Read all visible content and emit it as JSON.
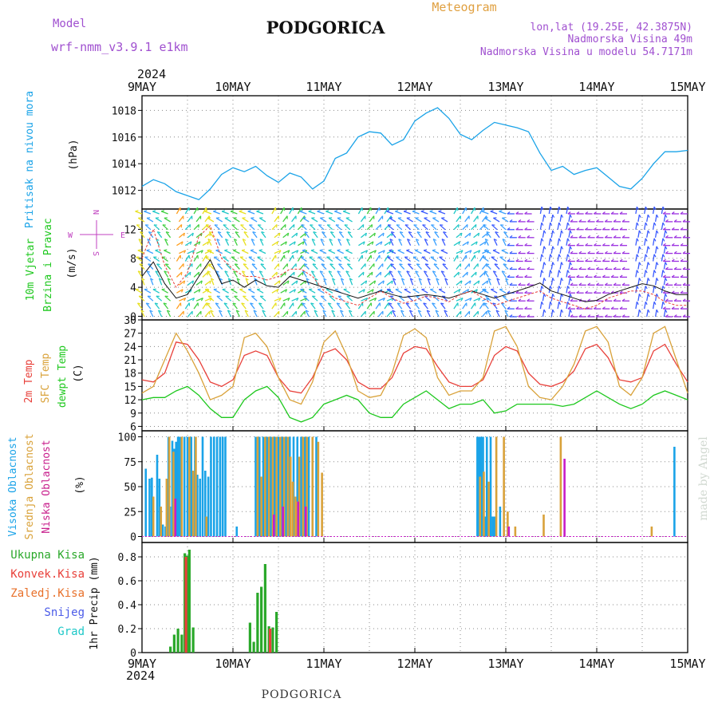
{
  "header": {
    "model_label": "Model",
    "model_name": "wrf-nmm_v3.9.1 e1km",
    "title": "PODGORICA",
    "meteogram_label": "Meteogram",
    "coords": "lon,lat (19.25E, 42.3875N)",
    "elevation": "Nadmorska Visina 49m",
    "model_elevation": "Nadmorska Visina u modelu 54.7171m"
  },
  "footer": {
    "station": "PODGORICA",
    "watermark": "made by Angel"
  },
  "colors": {
    "pressure": "#1aa3e8",
    "temp2m": "#e8403a",
    "sfc": "#d9a23a",
    "dewpt": "#1ec81e",
    "high_cloud": "#1aa3e8",
    "mid_cloud": "#d9a23a",
    "low_cloud": "#c81ec8",
    "total_precip": "#2aa82a",
    "conv_precip": "#e8403a"
  },
  "time_axis": {
    "year_label": "2024",
    "days": [
      "9MAY",
      "10MAY",
      "11MAY",
      "12MAY",
      "13MAY",
      "14MAY",
      "15MAY"
    ]
  },
  "wind_legend": {
    "n": "N",
    "w": "W",
    "e": "E",
    "s": "S"
  },
  "chart_data": [
    {
      "type": "line",
      "ylabel": "Pritisak na nivou mora",
      "unit": "(hPa)",
      "ylim": [
        1010.6,
        1019.1
      ],
      "yticks": [
        1012,
        1014,
        1016,
        1018
      ],
      "x_hours": [
        0,
        3,
        6,
        9,
        12,
        15,
        18,
        21,
        24,
        27,
        30,
        33,
        36,
        39,
        42,
        45,
        48,
        51,
        54,
        57,
        60,
        63,
        66,
        69,
        72,
        75,
        78,
        81,
        84,
        87,
        90,
        93,
        96,
        99,
        102,
        105,
        108,
        111,
        114,
        117,
        120,
        123,
        126,
        129,
        132,
        135,
        138,
        141,
        144
      ],
      "series": [
        {
          "values": [
            1012.3,
            1012.8,
            1012.5,
            1011.9,
            1011.6,
            1011.3,
            1012.1,
            1013.2,
            1013.7,
            1013.4,
            1013.8,
            1013.1,
            1012.6,
            1013.3,
            1013.0,
            1012.1,
            1012.7,
            1014.4,
            1014.8,
            1016.0,
            1016.4,
            1016.3,
            1015.4,
            1015.8,
            1017.2,
            1017.8,
            1018.2,
            1017.4,
            1016.2,
            1015.8,
            1016.5,
            1017.1,
            1016.9,
            1016.7,
            1016.4,
            1014.8,
            1013.5,
            1013.8,
            1013.2,
            1013.5,
            1013.7,
            1013.0,
            1012.3,
            1012.1,
            1012.9,
            1014.0,
            1014.9,
            1014.9,
            1015.0
          ]
        }
      ]
    },
    {
      "type": "line",
      "ylabel": "10m Vjetar Brzina i Pravac",
      "unit": "(m/s)",
      "ylim": [
        -0.5,
        14.8
      ],
      "yticks": [
        0,
        4,
        8,
        12
      ],
      "x_hours": [
        0,
        3,
        6,
        9,
        12,
        15,
        18,
        21,
        24,
        27,
        30,
        33,
        36,
        39,
        42,
        45,
        48,
        51,
        54,
        57,
        60,
        63,
        66,
        69,
        72,
        75,
        78,
        81,
        84,
        87,
        90,
        93,
        96,
        99,
        102,
        105,
        108,
        111,
        114,
        117,
        120,
        123,
        126,
        129,
        132,
        135,
        138,
        141,
        144
      ],
      "series": [
        {
          "name": "speed",
          "values": [
            5.5,
            7.5,
            4.5,
            2.5,
            3.0,
            5.5,
            7.8,
            4.5,
            5.0,
            4.0,
            5.0,
            4.2,
            4.0,
            5.5,
            5.0,
            4.5,
            4.0,
            3.5,
            3.0,
            2.5,
            3.0,
            3.5,
            3.0,
            2.6,
            2.8,
            3.0,
            2.8,
            2.5,
            3.0,
            3.5,
            3.0,
            2.5,
            3.0,
            3.5,
            4.0,
            4.6,
            3.5,
            3.0,
            2.5,
            2.0,
            2.2,
            3.0,
            3.5,
            4.0,
            4.5,
            4.2,
            3.5,
            3.0,
            3.0
          ]
        },
        {
          "name": "gust",
          "values": [
            8.0,
            12.0,
            7.0,
            4.0,
            6.0,
            11.0,
            12.5,
            8.0,
            6.5,
            5.5,
            5.5,
            5.0,
            5.5,
            6.5,
            6.5,
            5.5,
            3.5,
            2.5,
            2.0,
            1.5,
            2.5,
            3.5,
            2.5,
            1.8,
            2.2,
            2.8,
            2.5,
            2.0,
            3.0,
            3.5,
            2.5,
            1.5,
            2.0,
            2.5,
            3.0,
            3.5,
            2.5,
            2.0,
            1.5,
            1.0,
            1.5,
            2.5,
            3.0,
            3.5,
            3.5,
            3.0,
            2.0,
            1.5,
            1.5
          ]
        }
      ]
    },
    {
      "type": "line",
      "ylabel": "2m Temp / SFC Temp / dewpt Temp",
      "unit": "(C)",
      "ylim": [
        5,
        30
      ],
      "yticks": [
        6,
        9,
        12,
        15,
        18,
        21,
        24,
        27,
        30
      ],
      "x_hours": [
        0,
        3,
        6,
        9,
        12,
        15,
        18,
        21,
        24,
        27,
        30,
        33,
        36,
        39,
        42,
        45,
        48,
        51,
        54,
        57,
        60,
        63,
        66,
        69,
        72,
        75,
        78,
        81,
        84,
        87,
        90,
        93,
        96,
        99,
        102,
        105,
        108,
        111,
        114,
        117,
        120,
        123,
        126,
        129,
        132,
        135,
        138,
        141,
        144
      ],
      "series": [
        {
          "name": "2m Temp",
          "values": [
            16.5,
            16,
            18,
            25,
            24.5,
            21,
            16,
            15,
            16.5,
            22,
            23,
            22,
            17,
            14,
            13.5,
            17,
            22.5,
            23.5,
            21,
            16,
            14.5,
            14.5,
            17,
            22.5,
            24,
            23.5,
            19.5,
            16,
            15,
            15,
            16.5,
            22,
            24,
            23,
            18,
            15.5,
            15,
            16,
            18.5,
            23.5,
            24.5,
            21.5,
            16.5,
            16,
            17,
            23,
            24.5,
            20,
            16
          ]
        },
        {
          "name": "SFC Temp",
          "values": [
            13.5,
            15,
            21,
            27,
            23,
            18,
            12,
            13,
            15,
            26,
            27,
            24,
            17,
            12,
            11,
            16,
            25,
            27.5,
            22,
            14,
            12.5,
            13,
            18,
            26.5,
            28,
            26,
            17,
            13,
            14,
            14,
            17,
            27.5,
            28.5,
            24,
            15,
            12.5,
            12,
            15,
            20,
            27.5,
            28.5,
            25,
            15,
            13,
            17,
            27,
            28.5,
            21,
            13.5
          ]
        },
        {
          "name": "dewpt Temp",
          "values": [
            12,
            12.5,
            12.5,
            14,
            15,
            13,
            10,
            8,
            8,
            12,
            14,
            15,
            12.5,
            8,
            7,
            8,
            11,
            12,
            13,
            12,
            9,
            8,
            8,
            11,
            12.5,
            14,
            12,
            10,
            11,
            11,
            12,
            9,
            9.5,
            11,
            11,
            11,
            11,
            10.5,
            11,
            12.5,
            14,
            12.5,
            11,
            10,
            11,
            13,
            14,
            13,
            12
          ]
        }
      ]
    },
    {
      "type": "bar",
      "ylabel": "Visoka Oblacnost / Srednja Oblacnost / Niska Oblacnost",
      "unit": "(%)",
      "ylim": [
        -6,
        106
      ],
      "yticks": [
        0,
        25,
        50,
        75,
        100
      ],
      "series": [
        {
          "name": "Visoka Oblacnost",
          "bars": [
            [
              1,
              68
            ],
            [
              2,
              58
            ],
            [
              2.6,
              59
            ],
            [
              4,
              82
            ],
            [
              4.6,
              58
            ],
            [
              5.5,
              12
            ],
            [
              6.2,
              10
            ],
            [
              7,
              100
            ],
            [
              7.4,
              30
            ],
            [
              8,
              96
            ],
            [
              8.5,
              88
            ],
            [
              9,
              95
            ],
            [
              9.5,
              100
            ],
            [
              10,
              100
            ],
            [
              11.2,
              100
            ],
            [
              12,
              100
            ],
            [
              13,
              100
            ],
            [
              14,
              100
            ],
            [
              14.6,
              62
            ],
            [
              15.3,
              58
            ],
            [
              16,
              100
            ],
            [
              16.7,
              66
            ],
            [
              17.5,
              60
            ],
            [
              18.2,
              100
            ],
            [
              19,
              100
            ],
            [
              19.8,
              100
            ],
            [
              20.6,
              100
            ],
            [
              21.3,
              100
            ],
            [
              22,
              100
            ],
            [
              25,
              10
            ],
            [
              30,
              100
            ],
            [
              31,
              100
            ],
            [
              32,
              100
            ],
            [
              33,
              100
            ],
            [
              34,
              100
            ],
            [
              35,
              100
            ],
            [
              36,
              100
            ],
            [
              37,
              100
            ],
            [
              38,
              100
            ],
            [
              39,
              100
            ],
            [
              40,
              100
            ],
            [
              41,
              100
            ],
            [
              42,
              100
            ],
            [
              43,
              100
            ],
            [
              44,
              100
            ],
            [
              45,
              100
            ],
            [
              46,
              100
            ],
            [
              88.5,
              100
            ],
            [
              89,
              100
            ],
            [
              89.5,
              100
            ],
            [
              90,
              100
            ],
            [
              90.5,
              20
            ],
            [
              91,
              100
            ],
            [
              92,
              100
            ],
            [
              92.5,
              20
            ],
            [
              93,
              20
            ],
            [
              94.5,
              30
            ],
            [
              140.5,
              90
            ]
          ]
        },
        {
          "name": "Srednja Oblacnost",
          "bars": [
            [
              3,
              40
            ],
            [
              5,
              30
            ],
            [
              6.5,
              58
            ],
            [
              7.2,
              100
            ],
            [
              8.3,
              85
            ],
            [
              10.5,
              100
            ],
            [
              12.5,
              100
            ],
            [
              13.5,
              66
            ],
            [
              14.2,
              100
            ],
            [
              17,
              20
            ],
            [
              30.5,
              100
            ],
            [
              31.5,
              60
            ],
            [
              32.5,
              100
            ],
            [
              33.5,
              100
            ],
            [
              34.5,
              100
            ],
            [
              35.5,
              100
            ],
            [
              36.5,
              100
            ],
            [
              37.5,
              100
            ],
            [
              38.5,
              100
            ],
            [
              39.2,
              80
            ],
            [
              39.8,
              55
            ],
            [
              40.5,
              40
            ],
            [
              41,
              35
            ],
            [
              41.5,
              80
            ],
            [
              42.5,
              100
            ],
            [
              43.5,
              100
            ],
            [
              45,
              100
            ],
            [
              46.5,
              95
            ],
            [
              47.5,
              64
            ],
            [
              89.2,
              60
            ],
            [
              90.2,
              65
            ],
            [
              91.5,
              55
            ],
            [
              93.5,
              100
            ],
            [
              95.5,
              100
            ],
            [
              96.5,
              25
            ],
            [
              98.5,
              10
            ],
            [
              106,
              22
            ],
            [
              110.5,
              100
            ],
            [
              134.5,
              10
            ]
          ]
        },
        {
          "name": "Niska Oblacnost",
          "bars": [
            [
              8.8,
              38
            ],
            [
              34.8,
              22
            ],
            [
              37.2,
              30
            ],
            [
              41.2,
              35
            ],
            [
              43.2,
              30
            ],
            [
              96.8,
              10
            ],
            [
              111.5,
              78
            ]
          ]
        }
      ]
    },
    {
      "type": "bar",
      "ylabel": "1hr Precip",
      "unit": "(mm)",
      "ylim": [
        0,
        0.92
      ],
      "yticks": [
        0,
        0.2,
        0.4,
        0.6,
        0.8
      ],
      "legend": [
        "Ukupna Kisa",
        "Konvek.Kisa",
        "Zaledj.Kisa",
        "Snijeg",
        "Grad"
      ],
      "legend_colors": [
        "#2aa82a",
        "#e8403a",
        "#e8702a",
        "#4a5ae8",
        "#1ec8c8"
      ],
      "series": [
        {
          "name": "Ukupna Kisa",
          "bars": [
            [
              7.5,
              0.05
            ],
            [
              8.5,
              0.15
            ],
            [
              9.5,
              0.2
            ],
            [
              10.5,
              0.15
            ],
            [
              11.3,
              0.83
            ],
            [
              11.9,
              0.81
            ],
            [
              12.5,
              0.86
            ],
            [
              13.5,
              0.21
            ],
            [
              28.5,
              0.25
            ],
            [
              29.5,
              0.09
            ],
            [
              30.5,
              0.5
            ],
            [
              31.5,
              0.55
            ],
            [
              32.5,
              0.74
            ],
            [
              33.5,
              0.22
            ],
            [
              34.5,
              0.21
            ],
            [
              35.5,
              0.34
            ]
          ]
        },
        {
          "name": "Konvek.Kisa",
          "bars": [
            [
              11.6,
              0.8
            ],
            [
              33.8,
              0.2
            ]
          ]
        }
      ]
    }
  ]
}
